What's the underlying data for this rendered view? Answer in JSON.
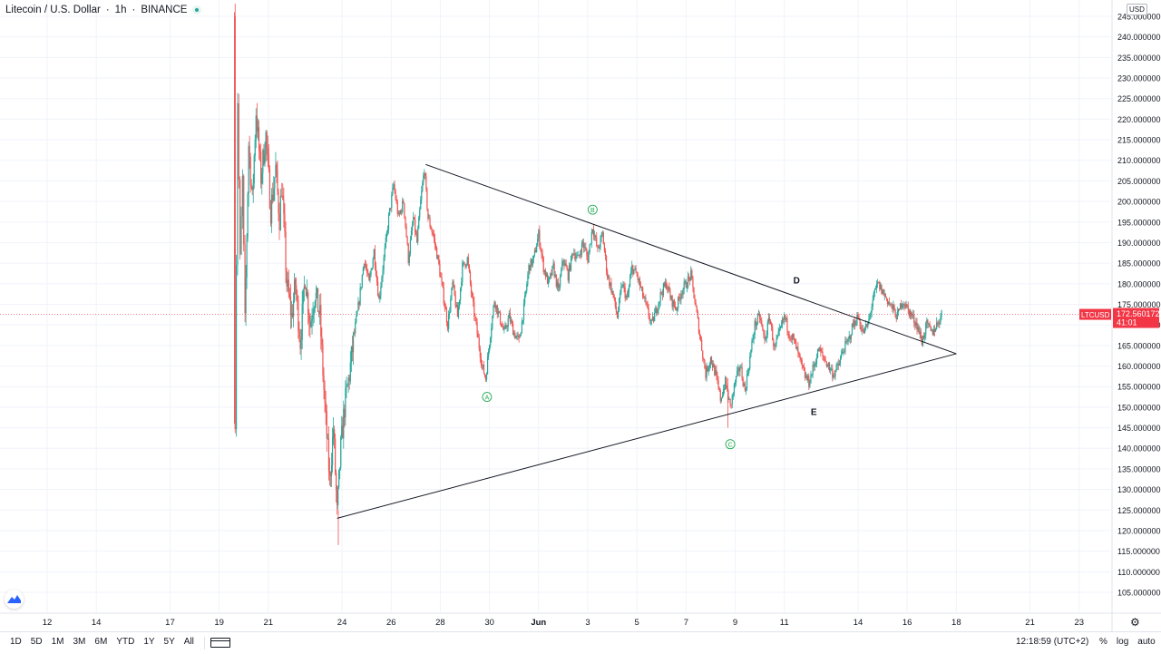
{
  "header": {
    "symbol": "Litecoin / U.S. Dollar",
    "interval": "1h",
    "exchange": "BINANCE"
  },
  "axis": {
    "currency": "USD",
    "last_label": "LTCUSD",
    "last_price": "172.560172",
    "countdown": "41:01"
  },
  "bottom": {
    "ranges": [
      "1D",
      "5D",
      "1M",
      "3M",
      "6M",
      "YTD",
      "1Y",
      "5Y",
      "All"
    ],
    "clock": "12:18:59 (UTC+2)",
    "percent": "%",
    "log": "log",
    "auto": "auto"
  },
  "colors": {
    "up": "#26a69a",
    "down": "#ef5350",
    "wave_label": "#22ab50",
    "last_price": "#f23645"
  },
  "chart_data": {
    "type": "candlestick",
    "ylim": [
      100,
      246
    ],
    "y_ticks": [
      "105.000000",
      "110.000000",
      "115.000000",
      "120.000000",
      "125.000000",
      "130.000000",
      "135.000000",
      "140.000000",
      "145.000000",
      "150.000000",
      "155.000000",
      "160.000000",
      "165.000000",
      "170.000000",
      "175.000000",
      "180.000000",
      "185.000000",
      "190.000000",
      "195.000000",
      "200.000000",
      "205.000000",
      "210.000000",
      "215.000000",
      "220.000000",
      "225.000000",
      "230.000000",
      "235.000000",
      "240.000000",
      "245.000000"
    ],
    "x_ticks": [
      {
        "label": "12",
        "day": 12
      },
      {
        "label": "14",
        "day": 14
      },
      {
        "label": "17",
        "day": 17
      },
      {
        "label": "19",
        "day": 19
      },
      {
        "label": "21",
        "day": 21
      },
      {
        "label": "24",
        "day": 24
      },
      {
        "label": "26",
        "day": 26
      },
      {
        "label": "28",
        "day": 28
      },
      {
        "label": "30",
        "day": 30
      },
      {
        "label": "Jun",
        "day": 32
      },
      {
        "label": "3",
        "day": 34
      },
      {
        "label": "5",
        "day": 36
      },
      {
        "label": "7",
        "day": 38
      },
      {
        "label": "9",
        "day": 40
      },
      {
        "label": "11",
        "day": 42
      },
      {
        "label": "14",
        "day": 45
      },
      {
        "label": "16",
        "day": 47
      },
      {
        "label": "18",
        "day": 49
      },
      {
        "label": "21",
        "day": 52
      },
      {
        "label": "23",
        "day": 54
      }
    ],
    "x_axis_note": "day index counted from May 1 (Jun 1 = 32)",
    "last_price": 172.560172,
    "price_path": [
      [
        19.6,
        245
      ],
      [
        19.65,
        148
      ],
      [
        19.75,
        225
      ],
      [
        19.85,
        185
      ],
      [
        19.95,
        205
      ],
      [
        20.05,
        170
      ],
      [
        20.2,
        214
      ],
      [
        20.35,
        200
      ],
      [
        20.5,
        222
      ],
      [
        20.7,
        206
      ],
      [
        20.9,
        216
      ],
      [
        21.1,
        198
      ],
      [
        21.3,
        208
      ],
      [
        21.45,
        196
      ],
      [
        21.55,
        204
      ],
      [
        21.75,
        180
      ],
      [
        21.95,
        172
      ],
      [
        22.1,
        180
      ],
      [
        22.3,
        166
      ],
      [
        22.5,
        182
      ],
      [
        22.7,
        170
      ],
      [
        22.9,
        178
      ],
      [
        23.1,
        172
      ],
      [
        23.3,
        150
      ],
      [
        23.5,
        132
      ],
      [
        23.65,
        145
      ],
      [
        23.8,
        124
      ],
      [
        23.95,
        140
      ],
      [
        24.1,
        150
      ],
      [
        24.3,
        158
      ],
      [
        24.5,
        168
      ],
      [
        24.7,
        176
      ],
      [
        24.9,
        186
      ],
      [
        25.1,
        180
      ],
      [
        25.3,
        188
      ],
      [
        25.5,
        176
      ],
      [
        25.7,
        186
      ],
      [
        25.9,
        196
      ],
      [
        26.1,
        204
      ],
      [
        26.3,
        196
      ],
      [
        26.5,
        200
      ],
      [
        26.7,
        186
      ],
      [
        26.9,
        196
      ],
      [
        27.05,
        190
      ],
      [
        27.2,
        200
      ],
      [
        27.35,
        208
      ],
      [
        27.5,
        196
      ],
      [
        27.7,
        192
      ],
      [
        27.9,
        186
      ],
      [
        28.1,
        178
      ],
      [
        28.3,
        170
      ],
      [
        28.5,
        180
      ],
      [
        28.7,
        172
      ],
      [
        28.9,
        184
      ],
      [
        29.1,
        186
      ],
      [
        29.3,
        176
      ],
      [
        29.5,
        168
      ],
      [
        29.7,
        160
      ],
      [
        29.85,
        157
      ],
      [
        30.0,
        166
      ],
      [
        30.2,
        176
      ],
      [
        30.4,
        172
      ],
      [
        30.6,
        168
      ],
      [
        30.8,
        172
      ],
      [
        31.0,
        168
      ],
      [
        31.2,
        166
      ],
      [
        31.4,
        174
      ],
      [
        31.6,
        184
      ],
      [
        31.8,
        186
      ],
      [
        32.0,
        192
      ],
      [
        32.2,
        184
      ],
      [
        32.4,
        180
      ],
      [
        32.6,
        184
      ],
      [
        32.8,
        178
      ],
      [
        33.0,
        186
      ],
      [
        33.2,
        182
      ],
      [
        33.4,
        188
      ],
      [
        33.6,
        186
      ],
      [
        33.8,
        190
      ],
      [
        34.0,
        186
      ],
      [
        34.2,
        194
      ],
      [
        34.4,
        188
      ],
      [
        34.6,
        192
      ],
      [
        34.8,
        182
      ],
      [
        35.0,
        178
      ],
      [
        35.2,
        172
      ],
      [
        35.4,
        180
      ],
      [
        35.6,
        176
      ],
      [
        35.8,
        184
      ],
      [
        36.0,
        182
      ],
      [
        36.2,
        178
      ],
      [
        36.4,
        174
      ],
      [
        36.6,
        170
      ],
      [
        36.8,
        174
      ],
      [
        37.0,
        178
      ],
      [
        37.2,
        180
      ],
      [
        37.4,
        176
      ],
      [
        37.6,
        174
      ],
      [
        37.8,
        178
      ],
      [
        38.0,
        180
      ],
      [
        38.2,
        182
      ],
      [
        38.4,
        174
      ],
      [
        38.6,
        166
      ],
      [
        38.8,
        158
      ],
      [
        39.0,
        162
      ],
      [
        39.2,
        158
      ],
      [
        39.4,
        152
      ],
      [
        39.6,
        156
      ],
      [
        39.8,
        150
      ],
      [
        40.0,
        156
      ],
      [
        40.2,
        160
      ],
      [
        40.4,
        154
      ],
      [
        40.6,
        162
      ],
      [
        40.8,
        170
      ],
      [
        41.0,
        172
      ],
      [
        41.2,
        166
      ],
      [
        41.4,
        172
      ],
      [
        41.6,
        164
      ],
      [
        41.8,
        168
      ],
      [
        42.0,
        172
      ],
      [
        42.2,
        168
      ],
      [
        42.4,
        166
      ],
      [
        42.6,
        162
      ],
      [
        42.8,
        158
      ],
      [
        43.0,
        156
      ],
      [
        43.2,
        160
      ],
      [
        43.4,
        164
      ],
      [
        43.6,
        162
      ],
      [
        43.8,
        160
      ],
      [
        44.0,
        158
      ],
      [
        44.2,
        160
      ],
      [
        44.4,
        164
      ],
      [
        44.6,
        166
      ],
      [
        44.8,
        170
      ],
      [
        45.0,
        172
      ],
      [
        45.2,
        168
      ],
      [
        45.4,
        170
      ],
      [
        45.6,
        176
      ],
      [
        45.8,
        180
      ],
      [
        46.0,
        178
      ],
      [
        46.2,
        176
      ],
      [
        46.4,
        174
      ],
      [
        46.6,
        172
      ],
      [
        46.8,
        176
      ],
      [
        47.0,
        174
      ],
      [
        47.2,
        172
      ],
      [
        47.4,
        170
      ],
      [
        47.6,
        166
      ],
      [
        47.8,
        170
      ],
      [
        48.0,
        168
      ],
      [
        48.2,
        170
      ],
      [
        48.4,
        172.56
      ]
    ],
    "pattern_lines": [
      {
        "name": "upper-trendline",
        "from": [
          27.4,
          209
        ],
        "to": [
          49.0,
          163
        ]
      },
      {
        "name": "lower-trendline",
        "from": [
          23.8,
          123
        ],
        "to": [
          49.0,
          163
        ]
      }
    ],
    "annotations": [
      {
        "text": "A",
        "day": 29.9,
        "price": 152.5,
        "circled": true
      },
      {
        "text": "B",
        "day": 34.2,
        "price": 198,
        "circled": true
      },
      {
        "text": "C",
        "day": 39.8,
        "price": 141,
        "circled": true
      },
      {
        "text": "D",
        "day": 42.5,
        "price": 181,
        "circled": false
      },
      {
        "text": "E",
        "day": 43.2,
        "price": 149,
        "circled": false
      }
    ]
  }
}
